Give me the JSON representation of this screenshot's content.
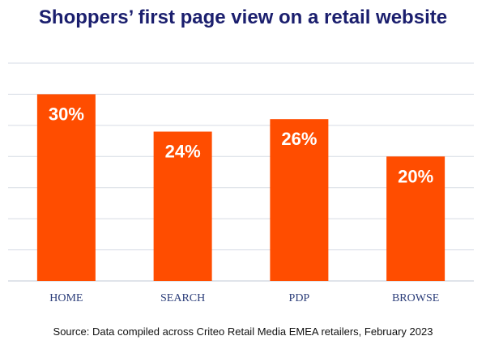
{
  "colors": {
    "bar": "#ff4d00",
    "title": "#1b1f6e",
    "grid": "#d6dbe4",
    "tick": "#2c3e7a"
  },
  "chart_data": {
    "type": "bar",
    "title": "Shoppers’ first page view on a retail website",
    "categories": [
      "HOME",
      "SEARCH",
      "PDP",
      "BROWSE"
    ],
    "values": [
      30,
      24,
      26,
      20
    ],
    "data_labels": [
      "30%",
      "24%",
      "26%",
      "20%"
    ],
    "ylim": [
      0,
      35
    ],
    "grid": true,
    "source": "Source: Data compiled across Criteo Retail Media EMEA retailers, February 2023"
  }
}
